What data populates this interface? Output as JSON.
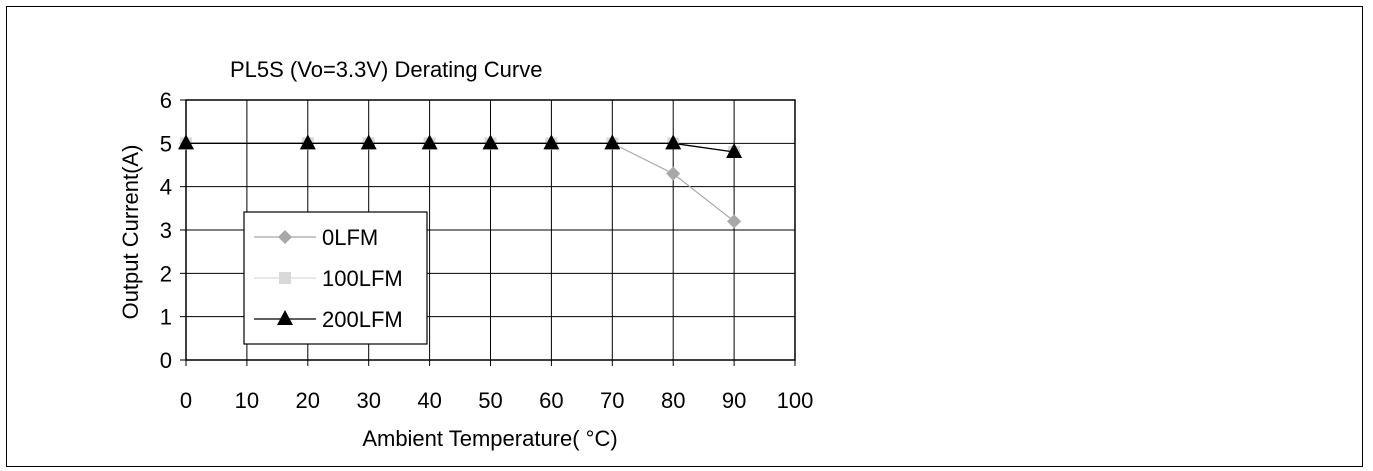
{
  "chart_data": {
    "type": "line",
    "title": "PL5S (Vo=3.3V) Derating Curve",
    "xlabel": "Ambient Temperature( °C)",
    "ylabel": "Output Current(A)",
    "xlim": [
      0,
      100
    ],
    "ylim": [
      0,
      6
    ],
    "xticks": [
      "0",
      "10",
      "20",
      "30",
      "40",
      "50",
      "60",
      "70",
      "80",
      "90",
      "100"
    ],
    "yticks": [
      "0",
      "1",
      "2",
      "3",
      "4",
      "5",
      "6"
    ],
    "grid": true,
    "legend_position": "lower-left",
    "series": [
      {
        "name": "0LFM",
        "marker": "diamond",
        "color": "#a8a8a8",
        "x": [
          0,
          20,
          30,
          40,
          50,
          60,
          70,
          80,
          90
        ],
        "y": [
          5,
          5,
          5,
          5,
          5,
          5,
          5,
          4.3,
          3.2
        ]
      },
      {
        "name": "100LFM",
        "marker": "square",
        "color": "#d9d9d9",
        "x": [
          0,
          20,
          30,
          40,
          50,
          60,
          70,
          80,
          90
        ],
        "y": [
          5,
          5,
          5,
          5,
          5,
          5,
          5,
          5,
          4.8
        ]
      },
      {
        "name": "200LFM",
        "marker": "triangle",
        "color": "#000000",
        "x": [
          0,
          20,
          30,
          40,
          50,
          60,
          70,
          80,
          90
        ],
        "y": [
          5,
          5,
          5,
          5,
          5,
          5,
          5,
          5,
          4.8
        ]
      }
    ]
  }
}
